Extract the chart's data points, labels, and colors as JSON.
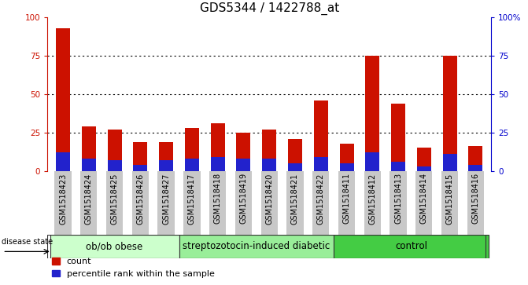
{
  "title": "GDS5344 / 1422788_at",
  "samples": [
    "GSM1518423",
    "GSM1518424",
    "GSM1518425",
    "GSM1518426",
    "GSM1518427",
    "GSM1518417",
    "GSM1518418",
    "GSM1518419",
    "GSM1518420",
    "GSM1518421",
    "GSM1518422",
    "GSM1518411",
    "GSM1518412",
    "GSM1518413",
    "GSM1518414",
    "GSM1518415",
    "GSM1518416"
  ],
  "count_values": [
    93,
    29,
    27,
    19,
    19,
    28,
    31,
    25,
    27,
    21,
    46,
    18,
    75,
    44,
    15,
    75,
    16
  ],
  "percentile_values": [
    12,
    8,
    7,
    4,
    7,
    8,
    9,
    8,
    8,
    5,
    9,
    5,
    12,
    6,
    3,
    11,
    4
  ],
  "groups": [
    {
      "label": "ob/ob obese",
      "start": 0,
      "end": 5,
      "color": "#ccffcc"
    },
    {
      "label": "streptozotocin-induced diabetic",
      "start": 5,
      "end": 11,
      "color": "#99ee99"
    },
    {
      "label": "control",
      "start": 11,
      "end": 17,
      "color": "#44cc44"
    }
  ],
  "ylim": [
    0,
    100
  ],
  "yticks": [
    0,
    25,
    50,
    75,
    100
  ],
  "ytick_labels_left": [
    "0",
    "25",
    "50",
    "75",
    "100"
  ],
  "ytick_labels_right": [
    "0",
    "25",
    "50",
    "75",
    "100%"
  ],
  "bar_color_count": "#cc1100",
  "bar_color_percentile": "#2222cc",
  "bar_width": 0.55,
  "title_fontsize": 11,
  "tick_fontsize": 7.5,
  "label_fontsize": 8,
  "group_fontsize": 8.5,
  "xtick_bg_color": "#c8c8c8",
  "group_border_color": "#333333",
  "disease_state_label": "disease state"
}
